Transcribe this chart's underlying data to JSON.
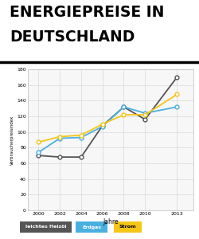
{
  "title_line1": "ENERGIEPREISE IN",
  "title_line2": "DEUTSCHLAND",
  "xlabel": "Jahre",
  "ylabel": "Verbraucherpreisindex",
  "years": [
    2000,
    2002,
    2004,
    2006,
    2008,
    2010,
    2013
  ],
  "leichtes_heizoel": [
    70,
    68,
    68,
    108,
    132,
    116,
    170
  ],
  "erdgas": [
    74,
    92,
    93,
    107,
    132,
    124,
    132
  ],
  "strom": [
    87,
    94,
    96,
    110,
    122,
    122,
    148
  ],
  "ylim": [
    0,
    180
  ],
  "yticks": [
    0,
    20,
    40,
    60,
    80,
    100,
    120,
    140,
    160,
    180
  ],
  "heizoel_color": "#555555",
  "erdgas_color": "#4ab0e0",
  "strom_color": "#f5c518",
  "background_color": "#ffffff",
  "plot_bg_color": "#f7f7f7",
  "grid_color": "#d8d8d8",
  "title_fontsize": 13.5,
  "legend_labels": [
    "leichtes Heizöl",
    "Erdgas",
    "Strom"
  ],
  "legend_colors": [
    "#555555",
    "#4ab0e0",
    "#f5c518"
  ],
  "legend_text_colors": [
    "white",
    "white",
    "black"
  ]
}
